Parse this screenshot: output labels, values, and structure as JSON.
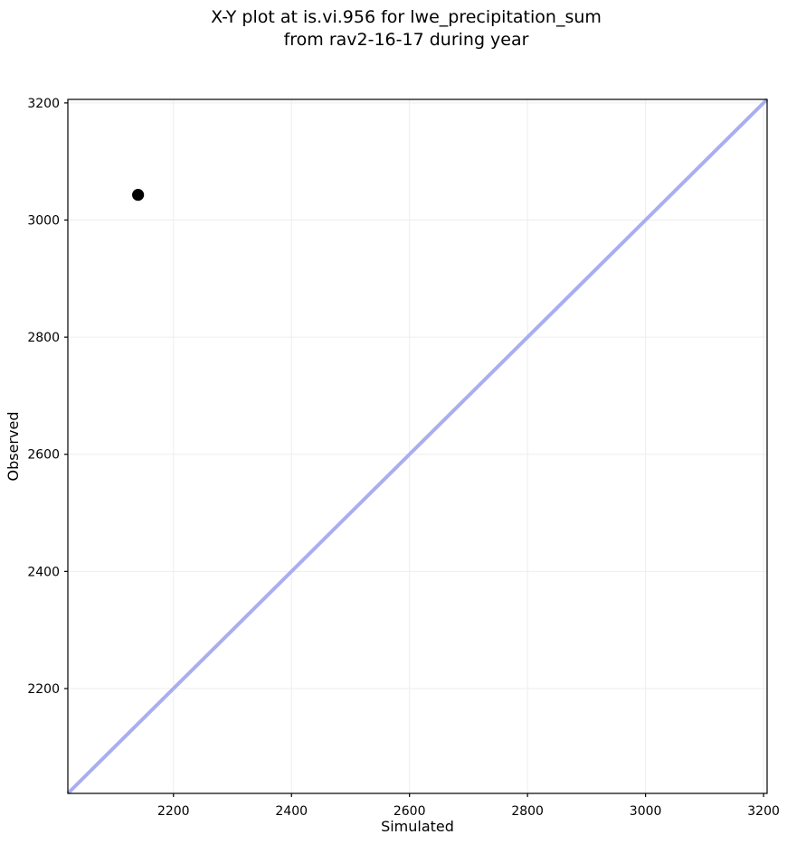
{
  "figure": {
    "background": "#ffffff"
  },
  "chart_data": {
    "type": "scatter",
    "title": "X-Y plot at is.vi.956 for lwe_precipitation_sum\nfrom rav2-16-17 during year",
    "title_lines": [
      "X-Y plot at is.vi.956 for lwe_precipitation_sum",
      "from rav2-16-17 during year"
    ],
    "xlabel": "Simulated",
    "ylabel": "Observed",
    "xlim": [
      2021,
      3206
    ],
    "ylim": [
      2021,
      3206
    ],
    "xticks": [
      2200,
      2400,
      2600,
      2800,
      3000,
      3200
    ],
    "yticks": [
      2200,
      2400,
      2600,
      2800,
      3000,
      3200
    ],
    "grid": true,
    "legend_position": "none",
    "series": [
      {
        "name": "one-to-one-line",
        "type": "line",
        "color": "#a9aef1",
        "stroke_width": 4,
        "points": [
          [
            2021,
            2021
          ],
          [
            3206,
            3206
          ]
        ]
      },
      {
        "name": "observed-vs-simulated",
        "type": "scatter",
        "marker": "circle",
        "color": "#000000",
        "marker_radius": 6.6,
        "points": [
          [
            2140,
            3043
          ]
        ]
      }
    ],
    "styles": {
      "grid_color": "#ededed",
      "spine_color": "#000000",
      "tick_color": "#000000",
      "text_color": "#000000",
      "background": "#ffffff"
    }
  }
}
